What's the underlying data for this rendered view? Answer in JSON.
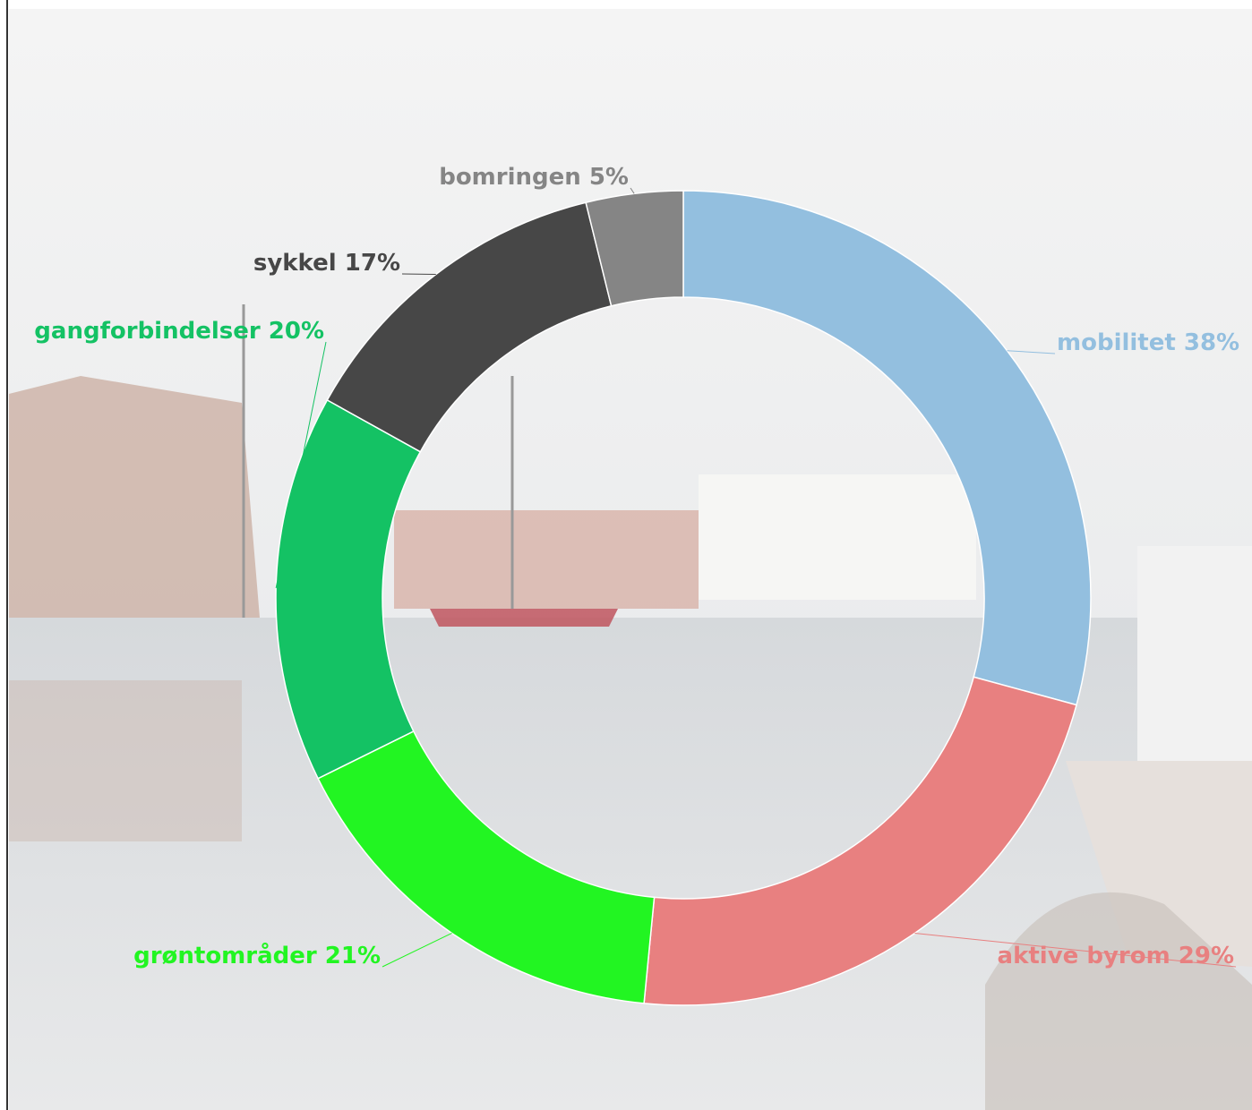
{
  "chart_data": {
    "type": "donut",
    "categories": [
      "mobilitet",
      "aktive byrom",
      "grøntområder",
      "gangforbindelser",
      "sykkel",
      "bomringen"
    ],
    "values": [
      38,
      29,
      21,
      20,
      17,
      5
    ],
    "value_labels": [
      "38%",
      "29%",
      "21%",
      "20%",
      "17%",
      "5%"
    ],
    "colors": [
      "#93bfdf",
      "#e88080",
      "#22f522",
      "#14c264",
      "#474747",
      "#858585"
    ]
  }
}
